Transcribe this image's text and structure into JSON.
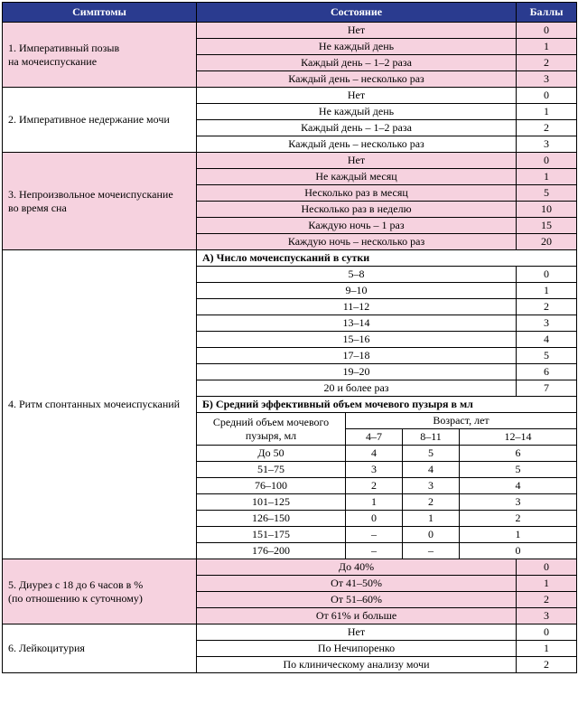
{
  "header": {
    "symptoms": "Симптомы",
    "condition": "Состояние",
    "points": "Баллы"
  },
  "sections": {
    "s1": {
      "label": "1. Императивный позыв\nна мочеиспускание",
      "rows": [
        {
          "c": "Нет",
          "p": "0"
        },
        {
          "c": "Не каждый день",
          "p": "1"
        },
        {
          "c": "Каждый день – 1–2 раза",
          "p": "2"
        },
        {
          "c": "Каждый день – несколько раз",
          "p": "3"
        }
      ]
    },
    "s2": {
      "label": "2. Императивное недержание мочи",
      "rows": [
        {
          "c": "Нет",
          "p": "0"
        },
        {
          "c": "Не каждый день",
          "p": "1"
        },
        {
          "c": "Каждый день – 1–2 раза",
          "p": "2"
        },
        {
          "c": "Каждый день – несколько раз",
          "p": "3"
        }
      ]
    },
    "s3": {
      "label": "3. Непроизвольное мочеиспускание\nво время сна",
      "rows": [
        {
          "c": "Нет",
          "p": "0"
        },
        {
          "c": "Не каждый месяц",
          "p": "1"
        },
        {
          "c": "Несколько раз в месяц",
          "p": "5"
        },
        {
          "c": "Несколько раз в неделю",
          "p": "10"
        },
        {
          "c": "Каждую ночь – 1 раз",
          "p": "15"
        },
        {
          "c": "Каждую ночь – несколько раз",
          "p": "20"
        }
      ]
    },
    "s4": {
      "label": "4. Ритм спонтанных мочеиспусканий",
      "a_title": "А) Число мочеиспусканий в сутки",
      "a_rows": [
        {
          "c": "5–8",
          "p": "0"
        },
        {
          "c": "9–10",
          "p": "1"
        },
        {
          "c": "11–12",
          "p": "2"
        },
        {
          "c": "13–14",
          "p": "3"
        },
        {
          "c": "15–16",
          "p": "4"
        },
        {
          "c": "17–18",
          "p": "5"
        },
        {
          "c": "19–20",
          "p": "6"
        },
        {
          "c": "20 и более раз",
          "p": "7"
        }
      ],
      "b_title": "Б) Средний эффективный объем мочевого пузыря в мл",
      "b_vol_label": "Средний объем мочевого\nпузыря, мл",
      "b_age_label": "Возраст, лет",
      "b_age_cols": [
        "4–7",
        "8–11",
        "12–14"
      ],
      "b_rows": [
        {
          "v": "До 50",
          "a": [
            "4",
            "5",
            "6"
          ]
        },
        {
          "v": "51–75",
          "a": [
            "3",
            "4",
            "5"
          ]
        },
        {
          "v": "76–100",
          "a": [
            "2",
            "3",
            "4"
          ]
        },
        {
          "v": "101–125",
          "a": [
            "1",
            "2",
            "3"
          ]
        },
        {
          "v": "126–150",
          "a": [
            "0",
            "1",
            "2"
          ]
        },
        {
          "v": "151–175",
          "a": [
            "–",
            "0",
            "1"
          ]
        },
        {
          "v": "176–200",
          "a": [
            "–",
            "–",
            "0"
          ]
        }
      ]
    },
    "s5": {
      "label": "5. Диурез с 18 до 6 часов в %\n(по отношению к суточному)",
      "rows": [
        {
          "c": "До 40%",
          "p": "0"
        },
        {
          "c": "От 41–50%",
          "p": "1"
        },
        {
          "c": "От 51–60%",
          "p": "2"
        },
        {
          "c": "От 61% и больше",
          "p": "3"
        }
      ]
    },
    "s6": {
      "label": "6. Лейкоцитурия",
      "rows": [
        {
          "c": "Нет",
          "p": "0"
        },
        {
          "c": "По Нечипоренко",
          "p": "1"
        },
        {
          "c": "По клиническому анализу мочи",
          "p": "2"
        }
      ]
    }
  }
}
